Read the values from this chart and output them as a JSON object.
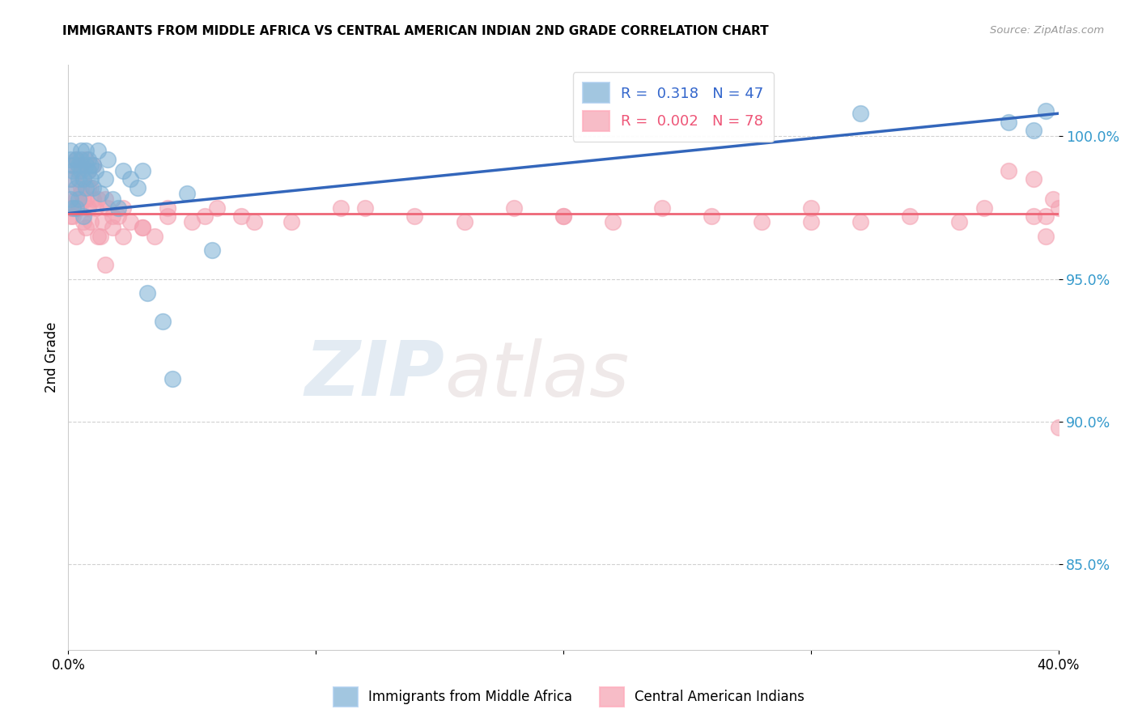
{
  "title": "IMMIGRANTS FROM MIDDLE AFRICA VS CENTRAL AMERICAN INDIAN 2ND GRADE CORRELATION CHART",
  "source": "Source: ZipAtlas.com",
  "ylabel": "2nd Grade",
  "xlim": [
    0.0,
    0.4
  ],
  "ylim": [
    82.0,
    102.5
  ],
  "y_ticks": [
    85.0,
    90.0,
    95.0,
    100.0
  ],
  "y_tick_labels": [
    "85.0%",
    "90.0%",
    "95.0%",
    "100.0%"
  ],
  "x_ticks": [
    0.0,
    0.1,
    0.2,
    0.3,
    0.4
  ],
  "x_tick_labels": [
    "0.0%",
    "",
    "",
    "",
    "40.0%"
  ],
  "legend_blue_label": "Immigrants from Middle Africa",
  "legend_pink_label": "Central American Indians",
  "R_blue": 0.318,
  "N_blue": 47,
  "R_pink": 0.002,
  "N_pink": 78,
  "blue_color": "#7BAFD4",
  "pink_color": "#F4A0B0",
  "blue_line_color": "#3366BB",
  "pink_line_color": "#EE6677",
  "watermark_text": "ZIPatlas",
  "blue_scatter_x": [
    0.001,
    0.001,
    0.001,
    0.001,
    0.002,
    0.002,
    0.002,
    0.003,
    0.003,
    0.003,
    0.004,
    0.004,
    0.004,
    0.005,
    0.005,
    0.005,
    0.006,
    0.006,
    0.007,
    0.007,
    0.007,
    0.008,
    0.008,
    0.009,
    0.009,
    0.01,
    0.01,
    0.011,
    0.012,
    0.013,
    0.015,
    0.016,
    0.018,
    0.02,
    0.022,
    0.025,
    0.028,
    0.03,
    0.032,
    0.038,
    0.042,
    0.048,
    0.058,
    0.32,
    0.38,
    0.39,
    0.395
  ],
  "blue_scatter_y": [
    99.2,
    98.5,
    97.8,
    99.5,
    98.8,
    99.0,
    97.5,
    98.2,
    99.2,
    97.5,
    98.5,
    99.0,
    97.8,
    98.8,
    99.2,
    99.5,
    98.5,
    97.2,
    99.0,
    98.2,
    99.5,
    98.8,
    99.2,
    98.5,
    99.0,
    98.2,
    99.0,
    98.8,
    99.5,
    98.0,
    98.5,
    99.2,
    97.8,
    97.5,
    98.8,
    98.5,
    98.2,
    98.8,
    94.5,
    93.5,
    91.5,
    98.0,
    96.0,
    100.8,
    100.5,
    100.2,
    100.9
  ],
  "pink_scatter_x": [
    0.001,
    0.001,
    0.002,
    0.002,
    0.003,
    0.003,
    0.004,
    0.004,
    0.005,
    0.005,
    0.006,
    0.006,
    0.007,
    0.007,
    0.008,
    0.008,
    0.009,
    0.01,
    0.011,
    0.012,
    0.013,
    0.014,
    0.015,
    0.016,
    0.018,
    0.02,
    0.022,
    0.025,
    0.03,
    0.035,
    0.04,
    0.05,
    0.06,
    0.07,
    0.09,
    0.11,
    0.14,
    0.16,
    0.18,
    0.2,
    0.22,
    0.24,
    0.26,
    0.28,
    0.3,
    0.32,
    0.34,
    0.36,
    0.38,
    0.39,
    0.395,
    0.398,
    0.4,
    0.001,
    0.002,
    0.003,
    0.004,
    0.005,
    0.006,
    0.007,
    0.008,
    0.009,
    0.01,
    0.012,
    0.015,
    0.018,
    0.022,
    0.03,
    0.04,
    0.055,
    0.075,
    0.12,
    0.2,
    0.3,
    0.37,
    0.39,
    0.395,
    0.4
  ],
  "pink_scatter_y": [
    99.0,
    97.5,
    98.5,
    97.2,
    99.2,
    97.8,
    98.8,
    97.5,
    99.0,
    98.2,
    98.5,
    97.0,
    99.2,
    97.8,
    98.8,
    97.5,
    98.2,
    99.0,
    97.5,
    97.8,
    96.5,
    97.0,
    95.5,
    97.5,
    96.8,
    97.2,
    96.5,
    97.0,
    96.8,
    96.5,
    97.2,
    97.0,
    97.5,
    97.2,
    97.0,
    97.5,
    97.2,
    97.0,
    97.5,
    97.2,
    97.0,
    97.5,
    97.2,
    97.0,
    97.5,
    97.0,
    97.2,
    97.0,
    98.8,
    98.5,
    97.2,
    97.8,
    97.5,
    97.2,
    98.0,
    96.5,
    97.5,
    98.0,
    97.8,
    96.8,
    98.2,
    97.0,
    97.8,
    96.5,
    97.8,
    97.2,
    97.5,
    96.8,
    97.5,
    97.2,
    97.0,
    97.5,
    97.2,
    97.0,
    97.5,
    97.2,
    96.5,
    89.8
  ]
}
